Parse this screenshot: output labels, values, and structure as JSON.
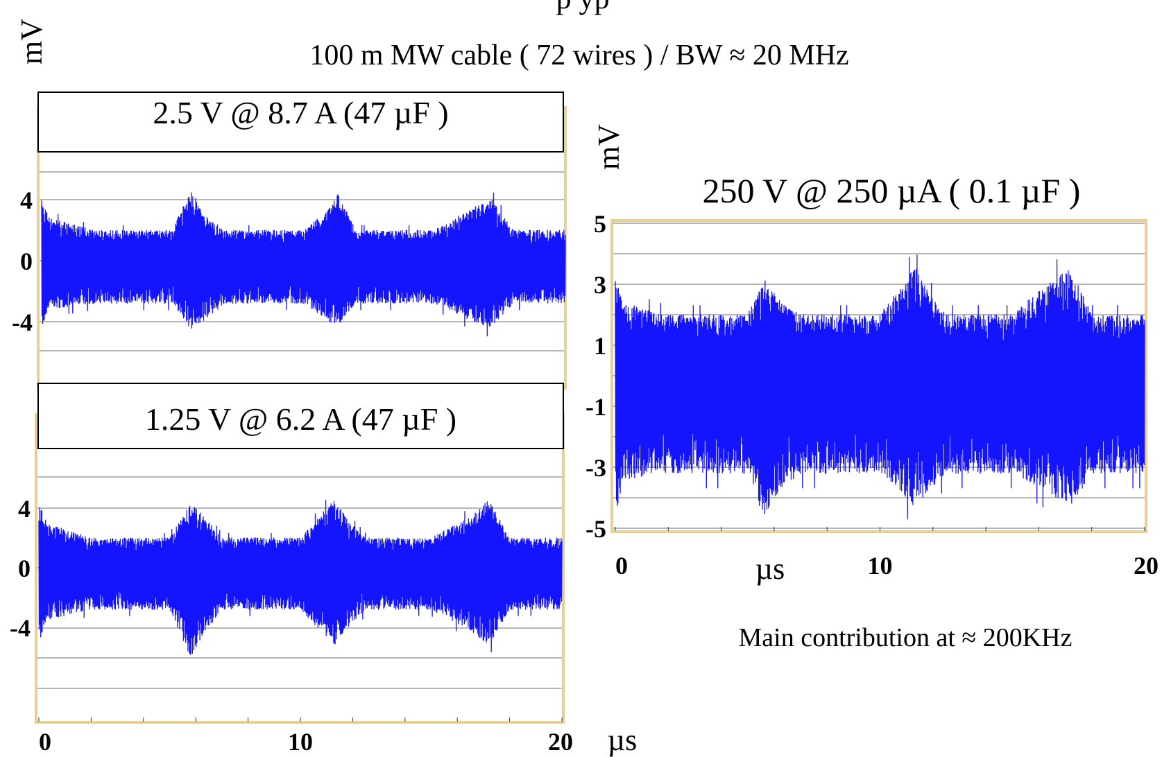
{
  "header": {
    "title_fragment": "p    yp",
    "subtitle": "100 m  MW cable ( 72 wires )  /  BW ≈ 20 MHz",
    "unit_left": "mV"
  },
  "footer_note": "Main contribution at ≈ 200KHz",
  "colors": {
    "trace": "#1414ff",
    "frame": "#e8cf95",
    "grid": "#8a8a8a",
    "box": "#000000"
  },
  "chart_data": [
    {
      "type": "line",
      "title": "2.5 V @ 8.7 A  (47 µF )",
      "xlabel": "",
      "ylabel": "mV",
      "xlim": [
        0,
        20
      ],
      "ylim": [
        -10,
        10
      ],
      "yticks": [
        4,
        0,
        -4
      ],
      "ytick_labels": [
        "4",
        "0",
        "-4"
      ],
      "xticks": [],
      "grid": true,
      "series": [
        {
          "envelope_points_x_us": [
            0,
            0.3,
            2,
            5,
            5.7,
            6.2,
            7,
            10,
            11,
            11.3,
            12,
            15,
            16.5,
            17.2,
            18,
            20
          ],
          "upper_mV": [
            4.0,
            2.8,
            2.0,
            2.0,
            4.8,
            3.0,
            2.0,
            2.0,
            3.5,
            4.4,
            2.0,
            2.0,
            3.5,
            4.0,
            2.0,
            2.0
          ],
          "lower_mV": [
            -4.5,
            -3.2,
            -2.8,
            -2.8,
            -4.5,
            -4.0,
            -2.8,
            -2.8,
            -4.0,
            -4.3,
            -2.8,
            -2.8,
            -4.0,
            -4.4,
            -2.8,
            -2.8
          ]
        }
      ]
    },
    {
      "type": "line",
      "title": "1.25 V @ 6.2 A  (47 µF )",
      "xlabel": "µs",
      "ylabel": "",
      "xlim": [
        0,
        20
      ],
      "ylim": [
        -10,
        10
      ],
      "yticks": [
        4,
        0,
        -4
      ],
      "ytick_labels": [
        "4",
        "0",
        "-4"
      ],
      "xticks": [
        0,
        10,
        20
      ],
      "xtick_labels": [
        "0",
        "10",
        "20"
      ],
      "grid": true,
      "series": [
        {
          "envelope_points_x_us": [
            0,
            0.3,
            2,
            5,
            5.8,
            6.3,
            7,
            10,
            11.3,
            11.8,
            12.5,
            15,
            16.5,
            17.2,
            18,
            20
          ],
          "upper_mV": [
            4.4,
            3.0,
            2.0,
            2.0,
            4.3,
            3.5,
            2.0,
            2.0,
            4.6,
            3.2,
            2.0,
            2.0,
            3.5,
            4.6,
            2.0,
            2.0
          ],
          "lower_mV": [
            -5.0,
            -3.5,
            -2.8,
            -2.8,
            -6.0,
            -4.5,
            -2.8,
            -2.8,
            -5.2,
            -4.0,
            -2.8,
            -2.8,
            -4.2,
            -5.2,
            -2.8,
            -2.8
          ]
        }
      ]
    },
    {
      "type": "line",
      "title": "250 V @ 250 µA  ( 0.1 µF )",
      "xlabel": "µs",
      "ylabel": "mV",
      "xlim": [
        0,
        20
      ],
      "ylim": [
        -5,
        5
      ],
      "yticks": [
        5,
        3,
        1,
        -1,
        -3,
        -5
      ],
      "ytick_labels": [
        "5",
        "3",
        "1",
        "-1",
        "-3",
        "-5"
      ],
      "xticks": [
        0,
        10,
        20
      ],
      "xtick_labels": [
        "0",
        "10",
        "20"
      ],
      "grid": true,
      "series": [
        {
          "envelope_points_x_us": [
            0,
            0.3,
            2,
            5,
            5.6,
            6.2,
            7,
            10,
            11.3,
            11.8,
            12.5,
            15,
            16.5,
            17.2,
            18,
            20
          ],
          "upper_mV": [
            3.2,
            2.4,
            2.0,
            2.0,
            3.2,
            2.5,
            2.0,
            2.0,
            3.6,
            2.8,
            2.0,
            2.0,
            3.2,
            3.6,
            2.0,
            2.0
          ],
          "lower_mV": [
            -4.8,
            -3.4,
            -3.2,
            -3.2,
            -4.7,
            -3.8,
            -3.2,
            -3.2,
            -4.3,
            -3.8,
            -3.2,
            -3.2,
            -3.9,
            -4.3,
            -3.2,
            -3.2
          ]
        }
      ]
    }
  ]
}
